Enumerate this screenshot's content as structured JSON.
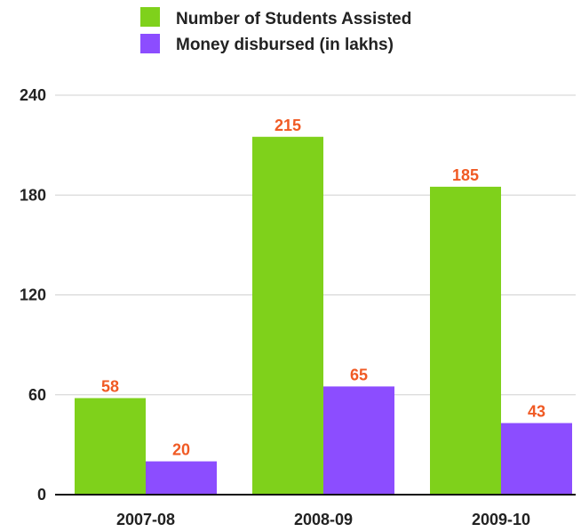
{
  "chart_data": {
    "type": "bar",
    "categories": [
      "2007-08",
      "2008-09",
      "2009-10"
    ],
    "series": [
      {
        "name": "Number of Students Assisted",
        "values": [
          58,
          215,
          185
        ],
        "color": "#7fd11b"
      },
      {
        "name": "Money disbursed (in lakhs)",
        "values": [
          20,
          65,
          43
        ],
        "color": "#8c4dff"
      }
    ],
    "yticks": [
      "0",
      "60",
      "120",
      "180",
      "240"
    ],
    "ylim": [
      0,
      240
    ],
    "grid": true,
    "legend_position": "top-center",
    "label_color": "#f05a24"
  }
}
